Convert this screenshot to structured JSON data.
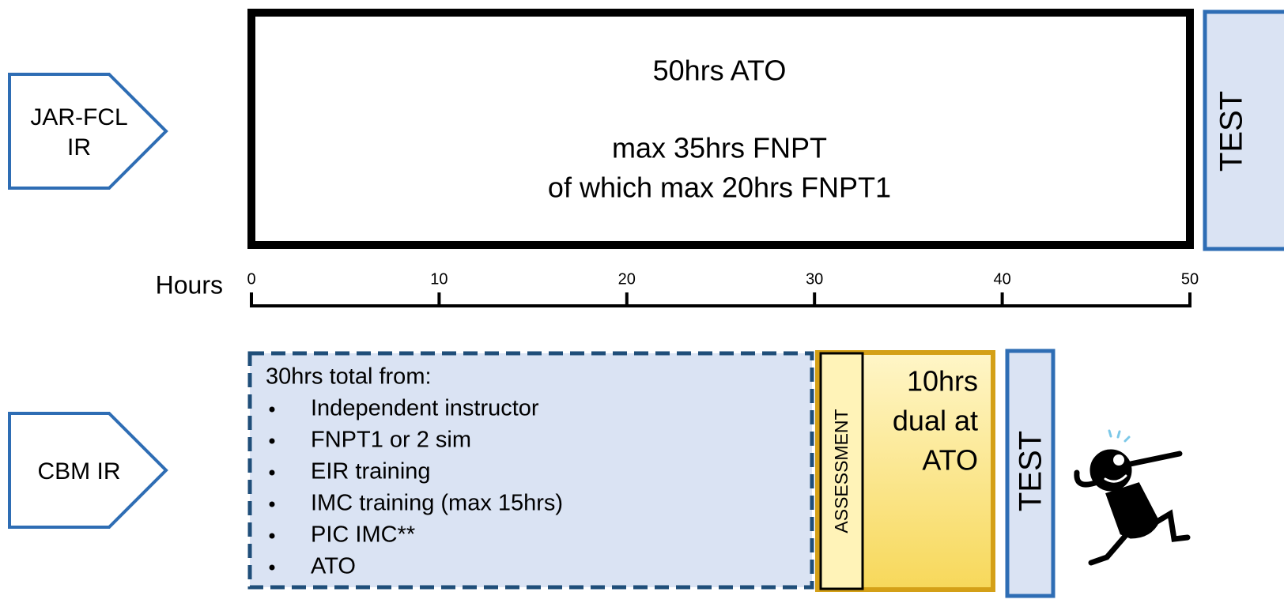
{
  "jar_fcl": {
    "label_lines": [
      "JAR-FCL",
      "IR"
    ],
    "box_lines": [
      "50hrs ATO",
      "max 35hrs FNPT",
      "of which max 20hrs FNPT1"
    ],
    "test": "TEST"
  },
  "axis": {
    "label": "Hours",
    "range": [
      0,
      50
    ],
    "ticks": [
      0,
      10,
      20,
      30,
      40,
      50
    ]
  },
  "cbm": {
    "label": "CBM IR",
    "list_title": "30hrs total from:",
    "list_items": [
      "Independent instructor",
      "FNPT1 or 2 sim",
      "EIR training",
      "IMC training (max 15hrs)",
      "PIC IMC**",
      "ATO"
    ],
    "assessment": "ASSESSMENT",
    "ato_lines": [
      "10hrs",
      "dual at",
      "ATO"
    ],
    "test": "TEST"
  }
}
